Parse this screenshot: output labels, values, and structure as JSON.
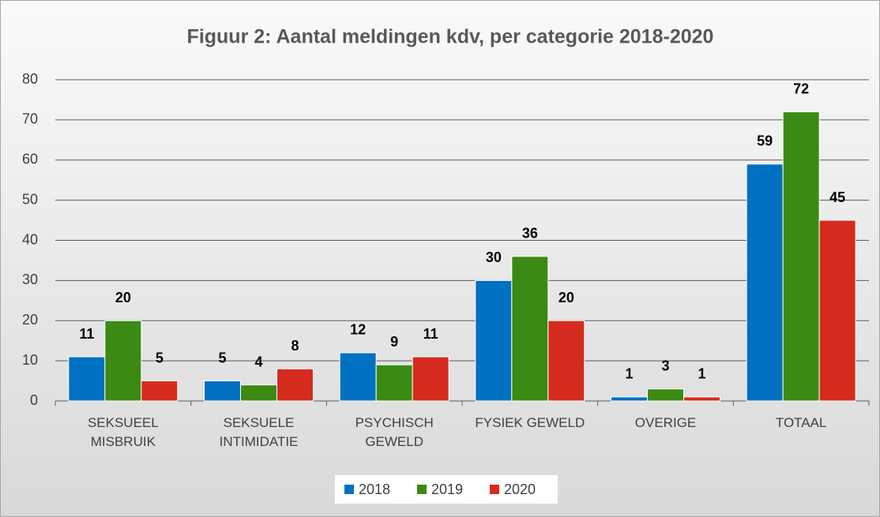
{
  "chart_data": {
    "type": "bar",
    "title": "Figuur 2: Aantal meldingen kdv, per categorie 2018-2020",
    "categories": [
      "SEKSUEEL MISBRUIK",
      "SEKSUELE INTIMIDATIE",
      "PSYCHISCH GEWELD",
      "FYSIEK GEWELD",
      "OVERIGE",
      "TOTAAL"
    ],
    "series": [
      {
        "name": "2018",
        "color": "#0070c0",
        "values": [
          11,
          5,
          12,
          30,
          1,
          59
        ]
      },
      {
        "name": "2019",
        "color": "#3a8a13",
        "values": [
          20,
          4,
          9,
          36,
          3,
          72
        ]
      },
      {
        "name": "2020",
        "color": "#d52b1e",
        "values": [
          5,
          8,
          11,
          20,
          1,
          45
        ]
      }
    ],
    "ylim": [
      0,
      80
    ],
    "yticks": [
      0,
      10,
      20,
      30,
      40,
      50,
      60,
      70,
      80
    ],
    "grid": true,
    "legend": "bottom"
  }
}
